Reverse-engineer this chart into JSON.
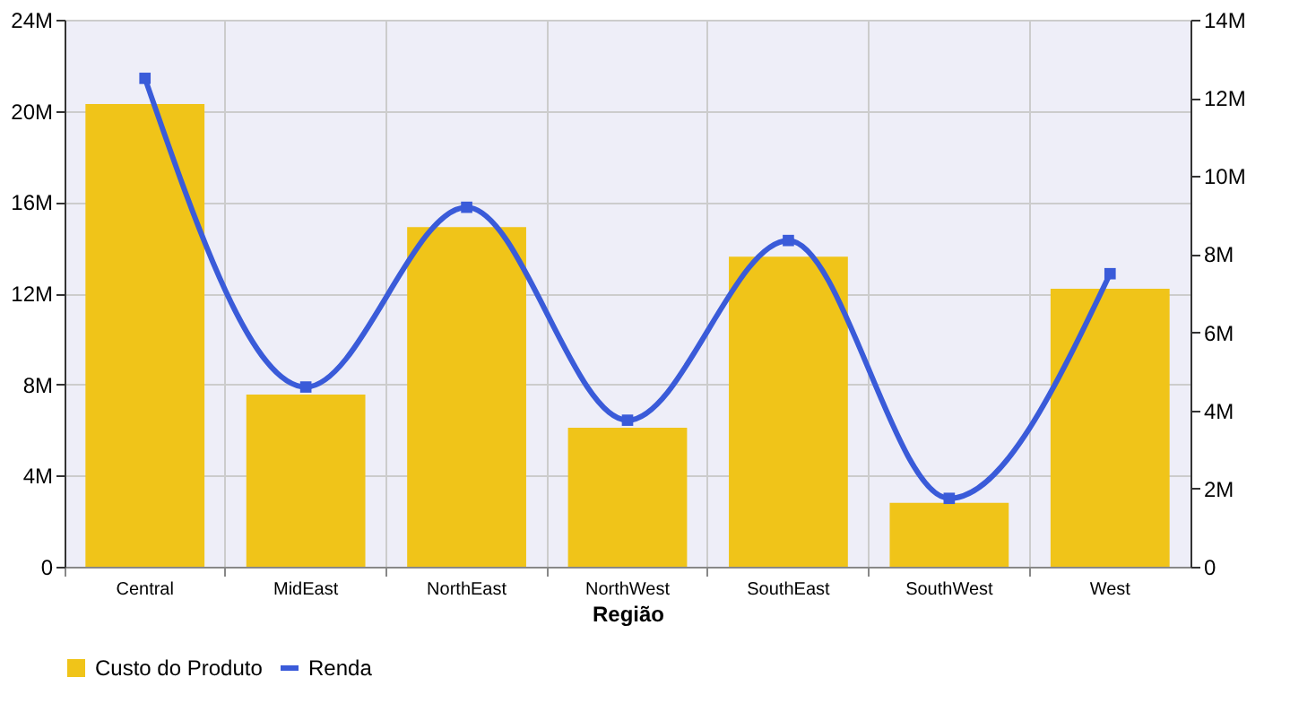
{
  "chart_data": {
    "type": "bar",
    "xlabel": "Região",
    "categories": [
      "Central",
      "MidEast",
      "NorthEast",
      "NorthWest",
      "SouthEast",
      "SouthWest",
      "West"
    ],
    "series": [
      {
        "name": "Custo do Produto",
        "color": "#f0c419",
        "values": [
          20.3,
          7.55,
          14.9,
          6.1,
          13.6,
          2.8,
          12.2
        ]
      },
      {
        "name": "Renda",
        "type": "line",
        "axis": "y2",
        "color": "#3a5bd9",
        "values": [
          12.5,
          4.6,
          9.2,
          3.75,
          8.35,
          1.75,
          7.5
        ]
      }
    ],
    "ylim": [
      0,
      24
    ],
    "yticks": [
      {
        "value": 0,
        "label": "0"
      },
      {
        "value": 4,
        "label": "4M"
      },
      {
        "value": 8,
        "label": "8M"
      },
      {
        "value": 12,
        "label": "12M"
      },
      {
        "value": 16,
        "label": "16M"
      },
      {
        "value": 20,
        "label": "20M"
      },
      {
        "value": 24,
        "label": "24M"
      }
    ],
    "y2lim": [
      0,
      14
    ],
    "y2ticks": [
      {
        "value": 0,
        "label": "0"
      },
      {
        "value": 2,
        "label": "2M"
      },
      {
        "value": 4,
        "label": "4M"
      },
      {
        "value": 6,
        "label": "6M"
      },
      {
        "value": 8,
        "label": "8M"
      },
      {
        "value": 10,
        "label": "10M"
      },
      {
        "value": 12,
        "label": "12M"
      },
      {
        "value": 14,
        "label": "14M"
      }
    ],
    "grid": true,
    "legend": "bottom",
    "marker": "square"
  }
}
